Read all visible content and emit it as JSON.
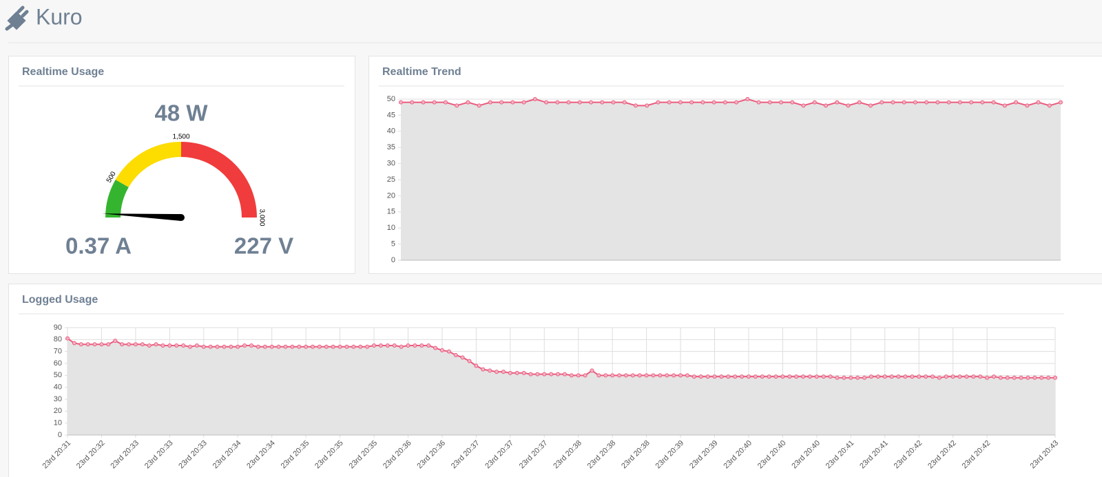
{
  "header": {
    "title": "Kuro"
  },
  "realtime_usage": {
    "title": "Realtime Usage",
    "gauge": {
      "type": "gauge",
      "value": 48,
      "value_label": "48 W",
      "min": 0,
      "max": 3000,
      "ticks": [
        500,
        {
          "value": 1500,
          "label": "1,500"
        },
        {
          "value": 3000,
          "label": "3,000"
        }
      ],
      "band_colors": [
        "#35b52f",
        "#fddc00",
        "#f03c3c"
      ],
      "needle_color": "#000000"
    },
    "current": "0.37 A",
    "voltage": "227 V"
  },
  "realtime_trend": {
    "title": "Realtime Trend",
    "chart_data": {
      "type": "area",
      "color": "#ea5b7e",
      "fill": "#e4e4e4",
      "grid": true,
      "values": [
        49,
        49,
        49,
        49,
        49,
        48,
        49,
        48,
        49,
        49,
        49,
        49,
        50,
        49,
        49,
        49,
        49,
        49,
        49,
        49,
        49,
        48,
        48,
        49,
        49,
        49,
        49,
        49,
        49,
        49,
        49,
        50,
        49,
        49,
        49,
        49,
        48,
        49,
        48,
        49,
        48,
        49,
        48,
        49,
        49,
        49,
        49,
        49,
        49,
        49,
        49,
        49,
        49,
        49,
        48,
        49,
        48,
        49,
        48,
        49
      ],
      "ylim": [
        0,
        50
      ],
      "yticks": [
        0,
        5,
        10,
        15,
        20,
        25,
        30,
        35,
        40,
        45,
        50
      ]
    }
  },
  "logged_usage": {
    "title": "Logged Usage",
    "chart_data": {
      "type": "area",
      "color": "#ea5b7e",
      "fill": "#e4e4e4",
      "grid": true,
      "values": [
        81,
        77,
        76,
        76,
        76,
        76,
        76,
        79,
        76,
        76,
        76,
        76,
        75,
        76,
        75,
        75,
        75,
        75,
        74,
        75,
        74,
        74,
        74,
        74,
        74,
        74,
        75,
        75,
        74,
        74,
        74,
        74,
        74,
        74,
        74,
        74,
        74,
        74,
        74,
        74,
        74,
        74,
        74,
        74,
        74,
        75,
        75,
        75,
        75,
        74,
        75,
        75,
        75,
        75,
        73,
        71,
        70,
        67,
        65,
        62,
        58,
        55,
        54,
        53,
        53,
        52,
        52,
        52,
        51,
        51,
        51,
        51,
        51,
        51,
        50,
        50,
        50,
        54,
        50,
        50,
        50,
        50,
        50,
        50,
        50,
        50,
        50,
        50,
        50,
        50,
        50,
        50,
        49,
        49,
        49,
        49,
        49,
        49,
        49,
        49,
        49,
        49,
        49,
        49,
        49,
        49,
        49,
        49,
        49,
        49,
        49,
        49,
        49,
        48,
        48,
        48,
        48,
        48,
        49,
        49,
        49,
        49,
        49,
        49,
        49,
        49,
        49,
        49,
        48,
        49,
        49,
        49,
        49,
        49,
        49,
        48,
        49,
        48,
        48,
        48,
        48,
        48,
        48,
        48,
        48,
        48
      ],
      "xlim": [
        0,
        145
      ],
      "xticks": [
        {
          "value": 0,
          "label": "23rd 20:31"
        },
        {
          "value": 5,
          "label": "23rd 20:32"
        },
        {
          "value": 10,
          "label": "23rd 20:33"
        },
        {
          "value": 15,
          "label": "23rd 20:33"
        },
        {
          "value": 20,
          "label": "23rd 20:33"
        },
        {
          "value": 25,
          "label": "23rd 20:34"
        },
        {
          "value": 30,
          "label": "23rd 20:34"
        },
        {
          "value": 35,
          "label": "23rd 20:35"
        },
        {
          "value": 40,
          "label": "23rd 20:35"
        },
        {
          "value": 45,
          "label": "23rd 20:35"
        },
        {
          "value": 50,
          "label": "23rd 20:36"
        },
        {
          "value": 55,
          "label": "23rd 20:36"
        },
        {
          "value": 60,
          "label": "23rd 20:37"
        },
        {
          "value": 65,
          "label": "23rd 20:37"
        },
        {
          "value": 70,
          "label": "23rd 20:37"
        },
        {
          "value": 75,
          "label": "23rd 20:38"
        },
        {
          "value": 80,
          "label": "23rd 20:38"
        },
        {
          "value": 85,
          "label": "23rd 20:38"
        },
        {
          "value": 90,
          "label": "23rd 20:39"
        },
        {
          "value": 95,
          "label": "23rd 20:39"
        },
        {
          "value": 100,
          "label": "23rd 20:40"
        },
        {
          "value": 105,
          "label": "23rd 20:40"
        },
        {
          "value": 110,
          "label": "23rd 20:40"
        },
        {
          "value": 115,
          "label": "23rd 20:41"
        },
        {
          "value": 120,
          "label": "23rd 20:41"
        },
        {
          "value": 125,
          "label": "23rd 20:42"
        },
        {
          "value": 130,
          "label": "23rd 20:42"
        },
        {
          "value": 135,
          "label": "23rd 20:42"
        },
        {
          "value": 145,
          "label": "23rd 20:43"
        }
      ],
      "ylim": [
        0,
        90
      ],
      "yticks": [
        0,
        10,
        20,
        30,
        40,
        50,
        60,
        70,
        80,
        90
      ]
    }
  }
}
